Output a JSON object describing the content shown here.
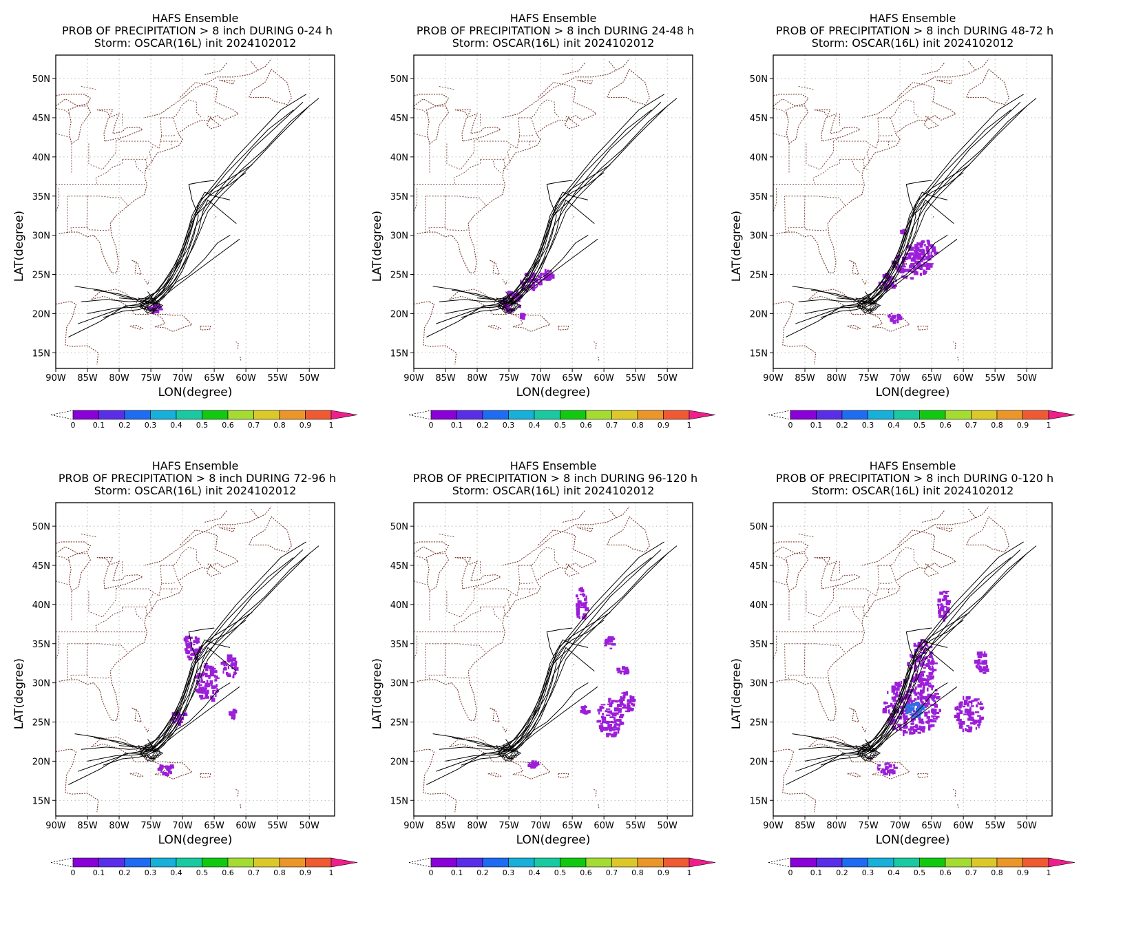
{
  "colors": {
    "background": "#ffffff",
    "coastline": "#7a3b2e",
    "track": "#000000",
    "precip": "#9b1ed8",
    "precip_high": "#2f6fe0",
    "grid": "#a0a0a0"
  },
  "colorbar": {
    "labels": [
      "0",
      "0.1",
      "0.2",
      "0.3",
      "0.4",
      "0.5",
      "0.6",
      "0.7",
      "0.8",
      "0.9",
      "1"
    ],
    "colors": [
      "#8a00d8",
      "#5a2ee8",
      "#1e6cf2",
      "#16b0d8",
      "#19c9a0",
      "#12c912",
      "#a5dc32",
      "#dcc828",
      "#eb9628",
      "#f05a32",
      "#f01e8c"
    ]
  },
  "chart_data": [
    {
      "type": "heatmap",
      "title": "HAFS Ensemble",
      "subtitle": "PROB OF PRECIPITATION > 8 inch DURING  0-24 h",
      "subtitle2": "Storm: OSCAR(16L) init 2024102012",
      "xlabel": "LON(degree)",
      "ylabel": "LAT(degree)",
      "xlim": [
        -90,
        -46
      ],
      "ylim": [
        13,
        53
      ],
      "xticks": [
        "90W",
        "85W",
        "80W",
        "75W",
        "70W",
        "65W",
        "60W",
        "55W",
        "50W"
      ],
      "yticks": [
        "15N",
        "20N",
        "25N",
        "30N",
        "35N",
        "40N",
        "45N",
        "50N"
      ],
      "grid": true,
      "precip_regions": [
        {
          "lon": -74.2,
          "lat": 20.6,
          "rlon": 1.2,
          "rlat": 0.5,
          "prob": 0.05
        }
      ]
    },
    {
      "type": "heatmap",
      "title": "HAFS Ensemble",
      "subtitle": "PROB OF PRECIPITATION > 8 inch DURING 24-48 h",
      "subtitle2": "Storm: OSCAR(16L) init 2024102012",
      "xlabel": "LON(degree)",
      "ylabel": "LAT(degree)",
      "xlim": [
        -90,
        -46
      ],
      "ylim": [
        13,
        53
      ],
      "xticks": [
        "90W",
        "85W",
        "80W",
        "75W",
        "70W",
        "65W",
        "60W",
        "55W",
        "50W"
      ],
      "yticks": [
        "15N",
        "20N",
        "25N",
        "30N",
        "35N",
        "40N",
        "45N",
        "50N"
      ],
      "grid": true,
      "precip_regions": [
        {
          "lon": -74.5,
          "lat": 21.5,
          "rlon": 1.8,
          "rlat": 1.3,
          "prob": 0.05
        },
        {
          "lon": -71.5,
          "lat": 24.0,
          "rlon": 1.7,
          "rlat": 1.2,
          "prob": 0.05
        },
        {
          "lon": -69.0,
          "lat": 25.0,
          "rlon": 1.3,
          "rlat": 0.7,
          "prob": 0.05
        },
        {
          "lon": -72.8,
          "lat": 19.7,
          "rlon": 0.3,
          "rlat": 0.3,
          "prob": 0.05
        }
      ]
    },
    {
      "type": "heatmap",
      "title": "HAFS Ensemble",
      "subtitle": "PROB OF PRECIPITATION > 8 inch DURING 48-72 h",
      "subtitle2": "Storm: OSCAR(16L) init 2024102012",
      "xlabel": "LON(degree)",
      "ylabel": "LAT(degree)",
      "xlim": [
        -90,
        -46
      ],
      "ylim": [
        13,
        53
      ],
      "xticks": [
        "90W",
        "85W",
        "80W",
        "75W",
        "70W",
        "65W",
        "60W",
        "55W",
        "50W"
      ],
      "yticks": [
        "15N",
        "20N",
        "25N",
        "30N",
        "35N",
        "40N",
        "45N",
        "50N"
      ],
      "grid": true,
      "precip_regions": [
        {
          "lon": -68.0,
          "lat": 26.5,
          "rlon": 3.0,
          "rlat": 2.2,
          "prob": 0.08
        },
        {
          "lon": -66.0,
          "lat": 28.0,
          "rlon": 1.8,
          "rlat": 1.4,
          "prob": 0.05
        },
        {
          "lon": -72.0,
          "lat": 24.0,
          "rlon": 1.6,
          "rlat": 1.0,
          "prob": 0.05
        },
        {
          "lon": -71.0,
          "lat": 19.5,
          "rlon": 1.2,
          "rlat": 0.6,
          "prob": 0.05
        },
        {
          "lon": -69.5,
          "lat": 30.5,
          "rlon": 0.3,
          "rlat": 0.3,
          "prob": 0.05
        }
      ]
    },
    {
      "type": "heatmap",
      "title": "HAFS Ensemble",
      "subtitle": "PROB OF PRECIPITATION > 8 inch DURING 72-96 h",
      "subtitle2": "Storm: OSCAR(16L) init 2024102012",
      "xlabel": "LON(degree)",
      "ylabel": "LAT(degree)",
      "xlim": [
        -90,
        -46
      ],
      "ylim": [
        13,
        53
      ],
      "xticks": [
        "90W",
        "85W",
        "80W",
        "75W",
        "70W",
        "65W",
        "60W",
        "55W",
        "50W"
      ],
      "yticks": [
        "15N",
        "20N",
        "25N",
        "30N",
        "35N",
        "40N",
        "45N",
        "50N"
      ],
      "grid": true,
      "precip_regions": [
        {
          "lon": -68.5,
          "lat": 34.5,
          "rlon": 1.5,
          "rlat": 1.6,
          "prob": 0.05
        },
        {
          "lon": -66.0,
          "lat": 30.0,
          "rlon": 1.8,
          "rlat": 2.5,
          "prob": 0.05
        },
        {
          "lon": -62.5,
          "lat": 32.0,
          "rlon": 1.2,
          "rlat": 1.5,
          "prob": 0.05
        },
        {
          "lon": -70.5,
          "lat": 25.5,
          "rlon": 1.4,
          "rlat": 0.8,
          "prob": 0.05
        },
        {
          "lon": -72.5,
          "lat": 19.0,
          "rlon": 1.2,
          "rlat": 0.7,
          "prob": 0.05
        },
        {
          "lon": -62.0,
          "lat": 26.0,
          "rlon": 0.4,
          "rlat": 0.6,
          "prob": 0.05
        }
      ]
    },
    {
      "type": "heatmap",
      "title": "HAFS Ensemble",
      "subtitle": "PROB OF PRECIPITATION > 8 inch DURING 96-120 h",
      "subtitle2": "Storm: OSCAR(16L) init 2024102012",
      "xlabel": "LON(degree)",
      "ylabel": "LAT(degree)",
      "xlim": [
        -90,
        -46
      ],
      "ylim": [
        13,
        53
      ],
      "xticks": [
        "90W",
        "85W",
        "80W",
        "75W",
        "70W",
        "65W",
        "60W",
        "55W",
        "50W"
      ],
      "yticks": [
        "15N",
        "20N",
        "25N",
        "30N",
        "35N",
        "40N",
        "45N",
        "50N"
      ],
      "grid": true,
      "precip_regions": [
        {
          "lon": -59.0,
          "lat": 25.5,
          "rlon": 2.0,
          "rlat": 2.5,
          "prob": 0.05
        },
        {
          "lon": -56.5,
          "lat": 27.5,
          "rlon": 1.3,
          "rlat": 1.3,
          "prob": 0.05
        },
        {
          "lon": -57.0,
          "lat": 31.5,
          "rlon": 0.8,
          "rlat": 0.5,
          "prob": 0.05
        },
        {
          "lon": -63.5,
          "lat": 40.0,
          "rlon": 1.0,
          "rlat": 2.0,
          "prob": 0.05
        },
        {
          "lon": -59.0,
          "lat": 35.0,
          "rlon": 0.8,
          "rlat": 0.8,
          "prob": 0.05
        },
        {
          "lon": -63.0,
          "lat": 26.5,
          "rlon": 0.7,
          "rlat": 0.5,
          "prob": 0.05
        },
        {
          "lon": -71.0,
          "lat": 19.5,
          "rlon": 0.8,
          "rlat": 0.5,
          "prob": 0.05
        }
      ]
    },
    {
      "type": "heatmap",
      "title": "HAFS Ensemble",
      "subtitle": "PROB OF PRECIPITATION > 8 inch DURING 0-120 h",
      "subtitle2": "Storm: OSCAR(16L) init 2024102012",
      "xlabel": "LON(degree)",
      "ylabel": "LAT(degree)",
      "xlim": [
        -90,
        -46
      ],
      "ylim": [
        13,
        53
      ],
      "xticks": [
        "90W",
        "85W",
        "80W",
        "75W",
        "70W",
        "65W",
        "60W",
        "55W",
        "50W"
      ],
      "yticks": [
        "15N",
        "20N",
        "25N",
        "30N",
        "35N",
        "40N",
        "45N",
        "50N"
      ],
      "grid": true,
      "precip_regions": [
        {
          "lon": -68.0,
          "lat": 27.0,
          "rlon": 4.5,
          "rlat": 3.8,
          "prob": 0.08
        },
        {
          "lon": -66.5,
          "lat": 32.5,
          "rlon": 2.2,
          "rlat": 3.0,
          "prob": 0.05
        },
        {
          "lon": -67.5,
          "lat": 26.5,
          "rlon": 1.6,
          "rlat": 1.0,
          "prob": 0.2
        },
        {
          "lon": -59.0,
          "lat": 26.0,
          "rlon": 2.2,
          "rlat": 2.5,
          "prob": 0.05
        },
        {
          "lon": -72.0,
          "lat": 19.0,
          "rlon": 1.6,
          "rlat": 0.8,
          "prob": 0.05
        },
        {
          "lon": -63.0,
          "lat": 40.0,
          "rlon": 1.0,
          "rlat": 2.0,
          "prob": 0.05
        },
        {
          "lon": -57.0,
          "lat": 32.5,
          "rlon": 1.0,
          "rlat": 1.5,
          "prob": 0.05
        }
      ]
    }
  ]
}
